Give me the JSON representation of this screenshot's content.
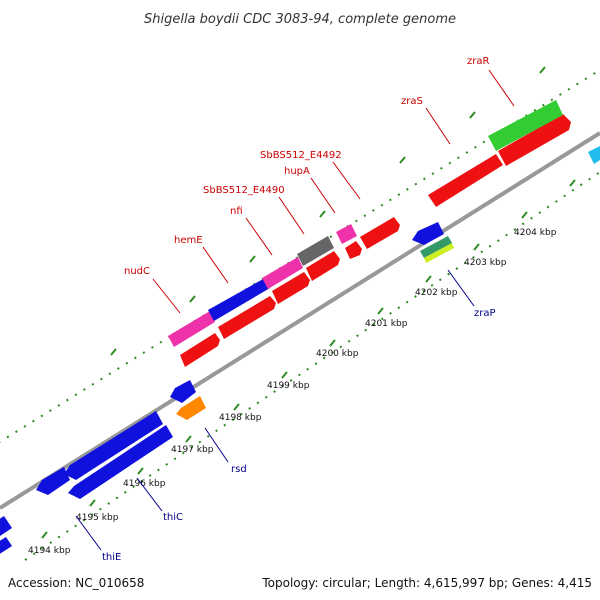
{
  "title": "Shigella boydii CDC 3083-94, complete genome",
  "footer": {
    "accession": "Accession: NC_010658",
    "summary": "Topology: circular; Length: 4,615,997 bp; Genes: 4,415"
  },
  "ticks": [
    "4194 kbp",
    "4195 kbp",
    "4196 kbp",
    "4197 kbp",
    "4198 kbp",
    "4199 kbp",
    "4200 kbp",
    "4201 kbp",
    "4202 kbp",
    "4203 kbp",
    "4204 kbp"
  ],
  "genes": [
    {
      "name": "nudC",
      "strand": "forward"
    },
    {
      "name": "hemE",
      "strand": "forward"
    },
    {
      "name": "nfi",
      "strand": "forward"
    },
    {
      "name": "SbBS512_E4490",
      "strand": "forward"
    },
    {
      "name": "hupA",
      "strand": "forward"
    },
    {
      "name": "SbBS512_E4492",
      "strand": "forward"
    },
    {
      "name": "zraS",
      "strand": "forward"
    },
    {
      "name": "zraR",
      "strand": "forward"
    },
    {
      "name": "zraP",
      "strand": "reverse"
    },
    {
      "name": "rsd",
      "strand": "reverse"
    },
    {
      "name": "thiC",
      "strand": "reverse"
    },
    {
      "name": "thiE",
      "strand": "reverse"
    }
  ],
  "colors": {
    "backbone": "#888888",
    "tick": "#2e8b22",
    "forward_label": "#cc0000",
    "reverse_label": "#00008b",
    "red": "#ee1111",
    "pink": "#ee33aa",
    "blue": "#1111dd",
    "gray": "#666666",
    "green": "#33cc33",
    "orange": "#ff8800",
    "cyan": "#22bbee",
    "yellow": "#ccee22",
    "teal": "#339966"
  }
}
